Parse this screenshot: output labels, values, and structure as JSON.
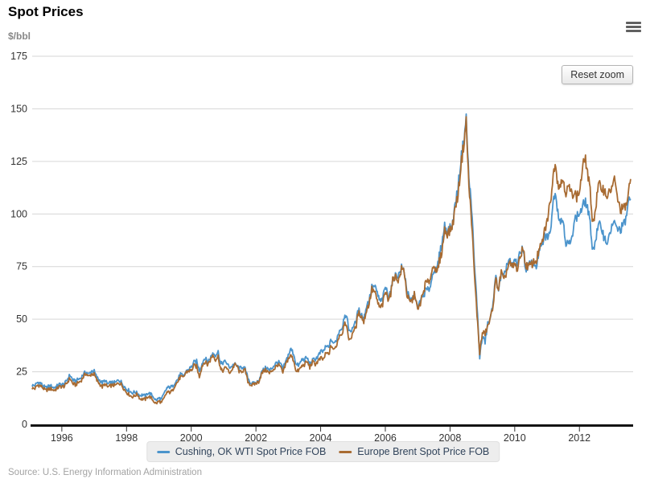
{
  "header": {
    "title": "Spot Prices",
    "menu_icon": "hamburger-icon"
  },
  "controls": {
    "reset_zoom_label": "Reset zoom"
  },
  "footer": {
    "source": "Source: U.S. Energy Information Administration"
  },
  "chart_data": {
    "type": "line",
    "title": "Spot Prices",
    "xlabel": "",
    "ylabel": "$/bbl",
    "xlim": [
      1995.083,
      2013.66
    ],
    "ylim": [
      0,
      175
    ],
    "y_ticks": [
      0,
      25,
      50,
      75,
      100,
      125,
      150,
      175
    ],
    "x_ticks": [
      1996,
      1998,
      2000,
      2002,
      2004,
      2006,
      2008,
      2010,
      2012
    ],
    "grid": true,
    "legend_position": "bottom",
    "frequency": "monthly (approximate averages read from daily chart)",
    "unit": "$/bbl",
    "colors": {
      "wti": "#4B94CC",
      "brent": "#A86B32",
      "grid": "#d6d6d6",
      "axis": "#141414"
    },
    "series": [
      {
        "name": "Cushing, OK WTI Spot Price FOB",
        "color": "#4B94CC",
        "x_start": 1995.083,
        "x_step_years": 0.08333,
        "values": [
          18.5,
          18.5,
          19.9,
          19.7,
          18.4,
          17.3,
          18.0,
          18.2,
          17.4,
          18.0,
          19.0,
          18.9,
          19.1,
          21.3,
          23.5,
          21.2,
          20.4,
          21.3,
          22.0,
          23.9,
          24.9,
          23.7,
          25.4,
          25.2,
          22.2,
          21.0,
          19.7,
          20.8,
          19.2,
          19.7,
          19.9,
          19.8,
          21.3,
          20.2,
          18.3,
          16.7,
          16.1,
          15.0,
          15.4,
          14.9,
          13.7,
          14.1,
          13.4,
          15.0,
          14.4,
          13.0,
          11.3,
          12.5,
          12.0,
          14.7,
          17.3,
          17.7,
          17.9,
          20.1,
          21.3,
          23.9,
          22.6,
          25.0,
          26.1,
          27.2,
          29.4,
          29.9,
          25.7,
          28.8,
          31.8,
          29.7,
          31.3,
          33.9,
          33.1,
          34.4,
          28.5,
          29.6,
          29.6,
          27.2,
          27.5,
          28.6,
          27.6,
          26.5,
          27.5,
          26.2,
          22.2,
          19.7,
          19.3,
          19.7,
          20.7,
          24.4,
          26.3,
          27.0,
          25.5,
          26.9,
          28.4,
          29.7,
          28.9,
          26.3,
          29.4,
          33.0,
          35.8,
          33.5,
          28.2,
          28.1,
          30.7,
          30.8,
          31.6,
          28.3,
          30.3,
          31.1,
          32.2,
          34.3,
          34.7,
          36.8,
          36.7,
          40.3,
          38.0,
          40.8,
          44.9,
          46.0,
          53.1,
          48.5,
          43.3,
          46.8,
          48.0,
          54.3,
          53.0,
          49.8,
          56.4,
          59.0,
          65.0,
          65.5,
          62.4,
          58.3,
          59.4,
          65.5,
          61.6,
          62.9,
          69.7,
          70.9,
          71.0,
          74.4,
          73.1,
          63.9,
          58.9,
          59.4,
          62.0,
          54.5,
          59.3,
          60.6,
          64.0,
          63.5,
          67.5,
          74.2,
          72.4,
          79.9,
          86.2,
          94.6,
          91.7,
          93.0,
          95.4,
          105.6,
          112.6,
          125.4,
          133.9,
          145.3,
          116.6,
          103.9,
          76.7,
          57.4,
          32.0,
          41.7,
          39.2,
          48.0,
          49.8,
          59.2,
          69.7,
          64.1,
          71.1,
          69.5,
          75.8,
          78.1,
          74.3,
          78.2,
          76.4,
          81.2,
          84.5,
          73.8,
          75.4,
          76.4,
          76.6,
          75.3,
          81.9,
          84.3,
          89.2,
          89.4,
          89.6,
          102.9,
          112.0,
          101.3,
          96.3,
          97.3,
          86.3,
          85.6,
          86.4,
          97.2,
          98.6,
          100.3,
          102.3,
          106.2,
          103.3,
          94.7,
          82.3,
          87.9,
          94.1,
          94.6,
          89.6,
          86.7,
          88.3,
          94.8,
          95.3,
          93.0,
          92.0,
          94.5,
          95.8,
          104.7,
          106.6
        ]
      },
      {
        "name": "Europe Brent Spot Price FOB",
        "color": "#A86B32",
        "x_start": 1995.083,
        "x_step_years": 0.08333,
        "values": [
          17.2,
          17.0,
          18.6,
          18.4,
          17.3,
          16.1,
          16.6,
          16.9,
          16.2,
          16.7,
          17.9,
          17.9,
          18.1,
          19.8,
          22.0,
          19.4,
          18.7,
          19.7,
          20.6,
          22.6,
          24.2,
          22.6,
          24.0,
          23.7,
          20.8,
          19.3,
          17.7,
          19.1,
          17.7,
          18.3,
          18.6,
          18.5,
          19.8,
          19.1,
          17.0,
          15.2,
          14.1,
          13.1,
          13.5,
          14.4,
          12.1,
          12.0,
          11.9,
          13.3,
          12.7,
          11.1,
          9.8,
          11.1,
          10.3,
          12.5,
          15.3,
          15.2,
          15.9,
          18.8,
          20.2,
          22.6,
          22.0,
          24.6,
          25.5,
          25.5,
          27.8,
          27.5,
          22.7,
          27.7,
          29.8,
          28.4,
          30.4,
          33.0,
          30.9,
          32.3,
          25.7,
          25.6,
          27.5,
          24.5,
          25.6,
          28.3,
          27.7,
          24.5,
          25.6,
          25.6,
          20.4,
          18.8,
          18.7,
          19.5,
          20.2,
          23.7,
          25.6,
          25.6,
          24.1,
          25.7,
          26.6,
          28.4,
          27.5,
          24.3,
          28.3,
          31.3,
          32.7,
          30.5,
          24.8,
          25.8,
          27.6,
          28.4,
          29.8,
          27.1,
          29.6,
          28.7,
          29.9,
          31.3,
          30.8,
          33.7,
          33.3,
          37.5,
          35.1,
          38.2,
          42.7,
          43.2,
          49.8,
          43.1,
          39.6,
          44.5,
          45.4,
          52.9,
          51.9,
          48.6,
          54.3,
          57.5,
          64.1,
          62.9,
          58.5,
          55.2,
          56.9,
          63.0,
          60.1,
          62.1,
          70.3,
          69.8,
          68.6,
          73.7,
          73.2,
          61.7,
          57.8,
          58.9,
          62.3,
          53.7,
          57.6,
          62.1,
          67.5,
          67.2,
          71.1,
          77.0,
          70.8,
          77.2,
          82.3,
          92.4,
          90.9,
          92.0,
          95.0,
          103.7,
          109.1,
          122.8,
          132.3,
          144.0,
          113.0,
          97.1,
          71.9,
          52.5,
          34.0,
          43.4,
          43.2,
          46.5,
          50.2,
          57.3,
          68.6,
          64.4,
          72.5,
          67.7,
          72.8,
          76.7,
          74.5,
          76.2,
          73.7,
          78.8,
          84.8,
          75.9,
          75.0,
          75.6,
          77.1,
          77.8,
          82.7,
          85.3,
          91.4,
          96.5,
          104.0,
          114.6,
          126.0,
          114.5,
          114.0,
          116.8,
          110.2,
          112.8,
          109.5,
          110.8,
          107.9,
          110.7,
          119.3,
          127.5,
          119.8,
          110.3,
          95.2,
          102.6,
          113.4,
          112.9,
          111.7,
          109.1,
          109.5,
          112.9,
          116.1,
          108.5,
          102.2,
          102.6,
          102.9,
          107.9,
          116.0
        ]
      }
    ]
  }
}
